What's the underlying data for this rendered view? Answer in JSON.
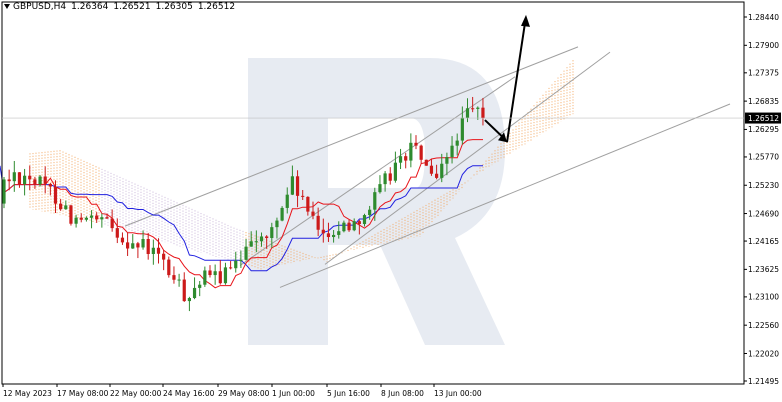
{
  "header": {
    "symbol": "GBPUSD,H4",
    "open": "1.26364",
    "high": "1.26521",
    "low": "1.26305",
    "close": "1.26512"
  },
  "current_price": "1.26512",
  "colors": {
    "background": "#ffffff",
    "axis": "#000000",
    "bull_candle": "#2e8b2e",
    "bear_candle": "#cc1a1a",
    "tenkan": "#e8141a",
    "kijun": "#2020e0",
    "cloud_bull": "#f2a45a",
    "cloud_bear": "#c8b4d8",
    "channel": "#a0a0a0",
    "forecast_arrow": "#000000",
    "watermark": "#dfe4ee",
    "price_tag": "#000000"
  },
  "icons": {
    "watermark": "broker-logo-watermark",
    "arrows": [
      "forecast-arrow-up",
      "forecast-arrow-down"
    ]
  },
  "chart_data": {
    "type": "candlestick",
    "symbol": "GBPUSD",
    "timeframe": "H4",
    "grid": false,
    "ylim": [
      1.2142,
      1.2866
    ],
    "y_ticks": [
      "1.28440",
      "1.27900",
      "1.27375",
      "1.26835",
      "1.26295",
      "1.25770",
      "1.25230",
      "1.24690",
      "1.24165",
      "1.23625",
      "1.23100",
      "1.22560",
      "1.22020",
      "1.21495"
    ],
    "x_ticks": [
      "12 May 2023",
      "17 May 08:00",
      "22 May 00:00",
      "24 May 16:00",
      "29 May 08:00",
      "1 Jun 00:00",
      "5 Jun 16:00",
      "8 Jun 08:00",
      "13 Jun 00:00"
    ],
    "key_prices": {
      "start_area": 1.2535,
      "low_may_26": 1.2305,
      "peak_jun_12": 1.2676,
      "last_close": 1.26512,
      "forecast_dip": 1.2605,
      "forecast_target": 1.2848
    },
    "indicators": [
      "Ichimoku Kinko Hyo"
    ],
    "annotations": [
      "ascending channel lines",
      "forecast arrow down then up"
    ]
  }
}
